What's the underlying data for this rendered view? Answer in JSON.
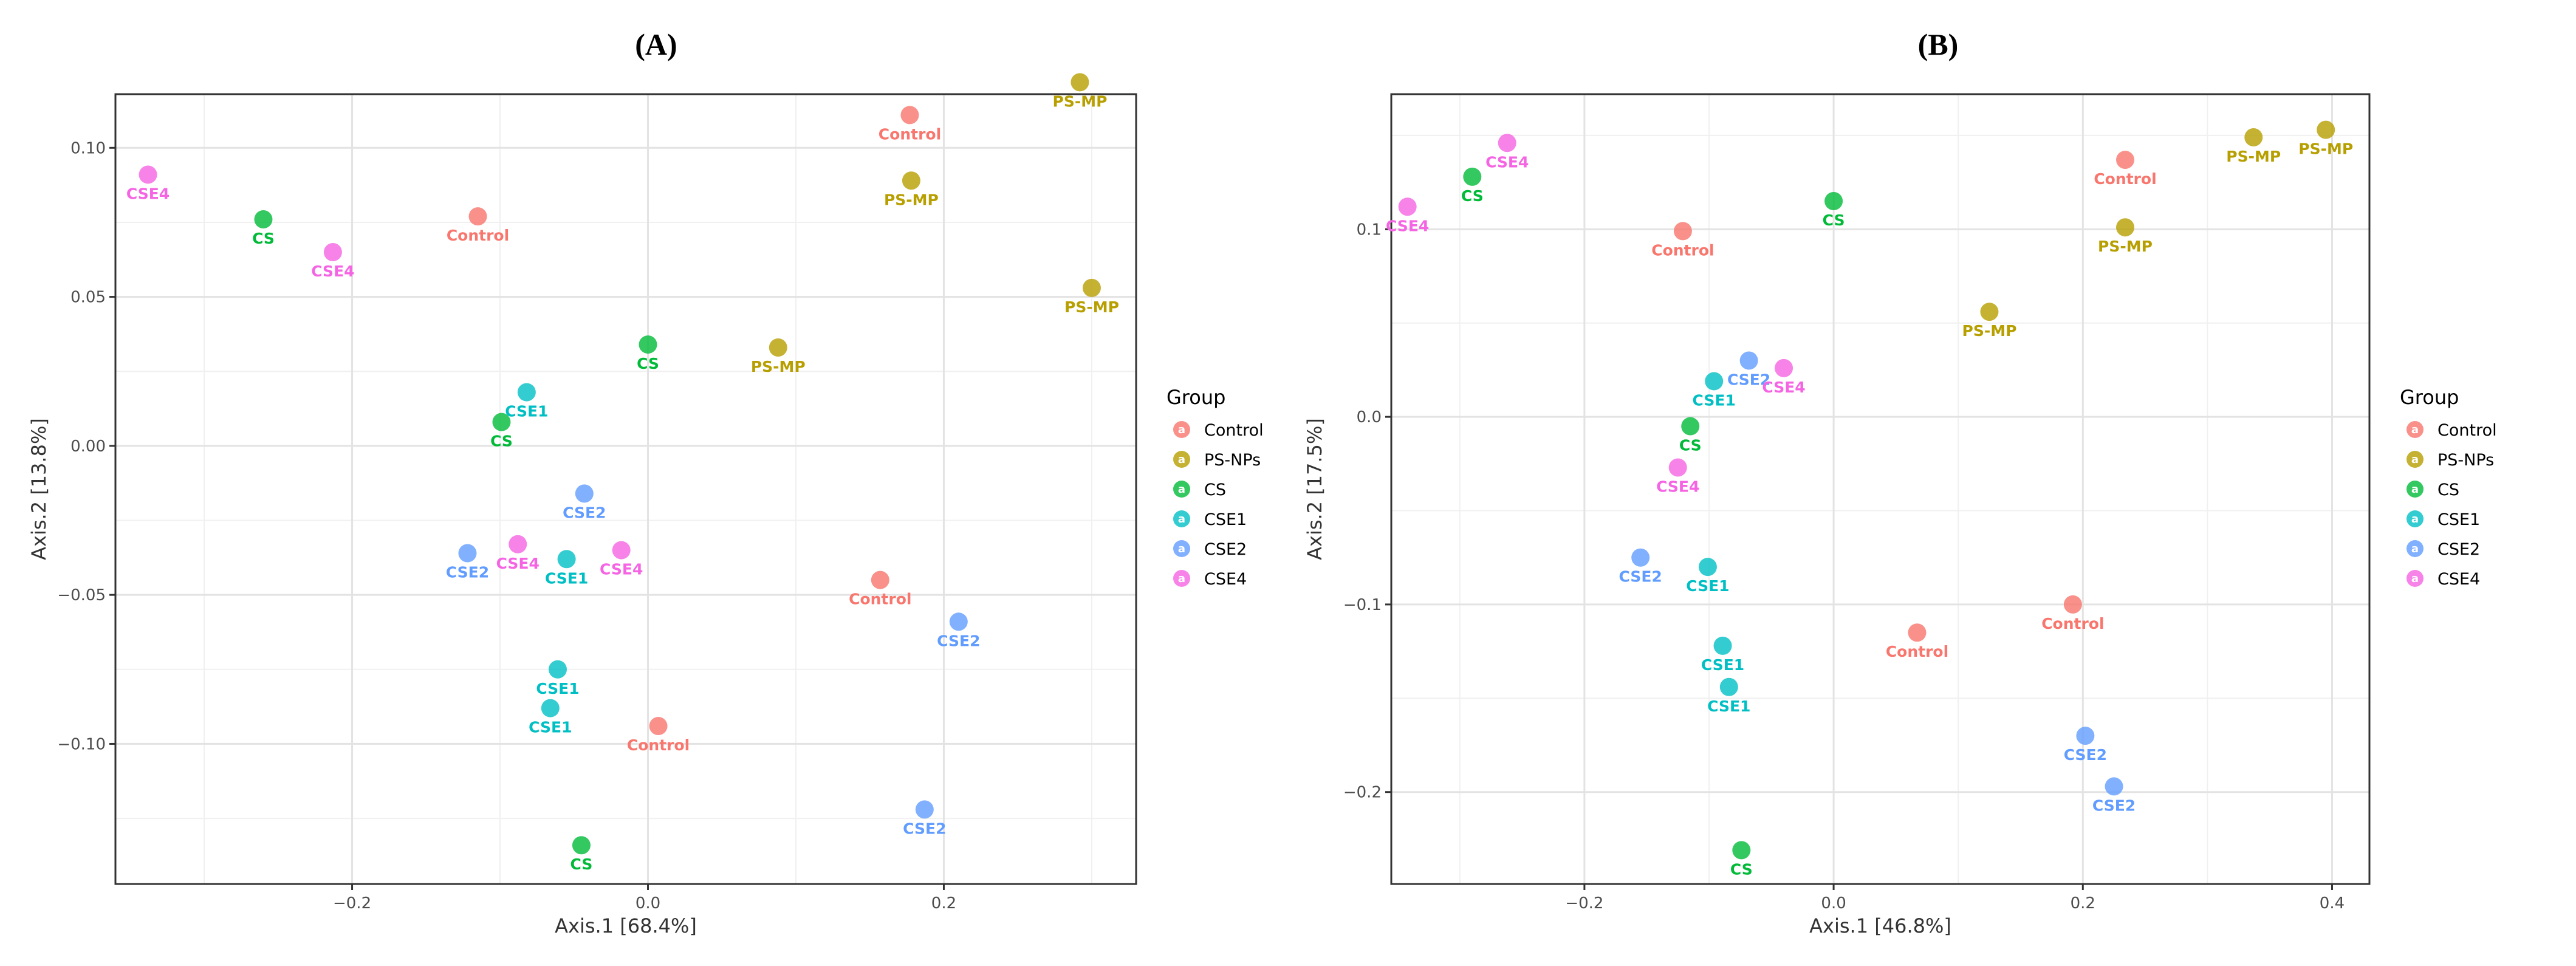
{
  "chart_data": [
    {
      "type": "scatter",
      "title": "(A)",
      "xlabel": "Axis.1   [68.4%]",
      "ylabel": "Axis.2   [13.8%]",
      "xlim": [
        -0.36,
        0.33
      ],
      "ylim": [
        -0.147,
        0.118
      ],
      "x_ticks": [
        -0.2,
        0.0,
        0.2
      ],
      "x_tick_labels": [
        "−0.2",
        "0.0",
        "0.2"
      ],
      "y_ticks": [
        -0.1,
        -0.05,
        0.0,
        0.05,
        0.1
      ],
      "y_tick_labels": [
        "−0.10",
        "−0.05",
        "0.00",
        "0.05",
        "0.10"
      ],
      "grid": true,
      "legend": {
        "title": "Group",
        "placement": "right",
        "entries": [
          {
            "label": "Control",
            "color": "#F8766D"
          },
          {
            "label": "PS-NPs",
            "color": "#B79F00"
          },
          {
            "label": "CS",
            "color": "#00BA38"
          },
          {
            "label": "CSE1",
            "color": "#00BFC4"
          },
          {
            "label": "CSE2",
            "color": "#619CFF"
          },
          {
            "label": "CSE4",
            "color": "#F564E3"
          }
        ]
      },
      "points": [
        {
          "label": "PS-MP",
          "group": "PS-NPs",
          "x": 0.292,
          "y": 0.122
        },
        {
          "label": "Control",
          "group": "Control",
          "x": 0.177,
          "y": 0.111
        },
        {
          "label": "CSE4",
          "group": "CSE4",
          "x": -0.338,
          "y": 0.091
        },
        {
          "label": "PS-MP",
          "group": "PS-NPs",
          "x": 0.178,
          "y": 0.089
        },
        {
          "label": "Control",
          "group": "Control",
          "x": -0.115,
          "y": 0.077
        },
        {
          "label": "CS",
          "group": "CS",
          "x": -0.26,
          "y": 0.076
        },
        {
          "label": "CSE4",
          "group": "CSE4",
          "x": -0.213,
          "y": 0.065
        },
        {
          "label": "PS-MP",
          "group": "PS-NPs",
          "x": 0.3,
          "y": 0.053
        },
        {
          "label": "CS",
          "group": "CS",
          "x": 0.0,
          "y": 0.034
        },
        {
          "label": "PS-MP",
          "group": "PS-NPs",
          "x": 0.088,
          "y": 0.033
        },
        {
          "label": "CSE1",
          "group": "CSE1",
          "x": -0.082,
          "y": 0.018
        },
        {
          "label": "CS",
          "group": "CS",
          "x": -0.099,
          "y": 0.008
        },
        {
          "label": "CSE2",
          "group": "CSE2",
          "x": -0.043,
          "y": -0.016
        },
        {
          "label": "CSE4",
          "group": "CSE4",
          "x": -0.088,
          "y": -0.033
        },
        {
          "label": "CSE2",
          "group": "CSE2",
          "x": -0.122,
          "y": -0.036
        },
        {
          "label": "CSE4",
          "group": "CSE4",
          "x": -0.018,
          "y": -0.035
        },
        {
          "label": "CSE1",
          "group": "CSE1",
          "x": -0.055,
          "y": -0.038
        },
        {
          "label": "Control",
          "group": "Control",
          "x": 0.157,
          "y": -0.045
        },
        {
          "label": "CSE2",
          "group": "CSE2",
          "x": 0.21,
          "y": -0.059
        },
        {
          "label": "CSE1",
          "group": "CSE1",
          "x": -0.061,
          "y": -0.075
        },
        {
          "label": "CSE1",
          "group": "CSE1",
          "x": -0.066,
          "y": -0.088
        },
        {
          "label": "Control",
          "group": "Control",
          "x": 0.007,
          "y": -0.094
        },
        {
          "label": "CSE2",
          "group": "CSE2",
          "x": 0.187,
          "y": -0.122
        },
        {
          "label": "CS",
          "group": "CS",
          "x": -0.045,
          "y": -0.134
        }
      ]
    },
    {
      "type": "scatter",
      "title": "(B)",
      "xlabel": "Axis.1   [46.8%]",
      "ylabel": "Axis.2   [17.5%]",
      "xlim": [
        -0.355,
        0.43
      ],
      "ylim": [
        -0.249,
        0.172
      ],
      "x_ticks": [
        -0.2,
        0.0,
        0.2,
        0.4
      ],
      "x_tick_labels": [
        "−0.2",
        "0.0",
        "0.2",
        "0.4"
      ],
      "y_ticks": [
        -0.2,
        -0.1,
        0.0,
        0.1
      ],
      "y_tick_labels": [
        "−0.2",
        "−0.1",
        "0.0",
        "0.1"
      ],
      "grid": true,
      "legend": {
        "title": "Group",
        "placement": "right",
        "entries": [
          {
            "label": "Control",
            "color": "#F8766D"
          },
          {
            "label": "PS-NPs",
            "color": "#B79F00"
          },
          {
            "label": "CS",
            "color": "#00BA38"
          },
          {
            "label": "CSE1",
            "color": "#00BFC4"
          },
          {
            "label": "CSE2",
            "color": "#619CFF"
          },
          {
            "label": "CSE4",
            "color": "#F564E3"
          }
        ]
      },
      "points": [
        {
          "label": "PS-MP",
          "group": "PS-NPs",
          "x": 0.395,
          "y": 0.153
        },
        {
          "label": "PS-MP",
          "group": "PS-NPs",
          "x": 0.337,
          "y": 0.149
        },
        {
          "label": "CSE4",
          "group": "CSE4",
          "x": -0.262,
          "y": 0.146
        },
        {
          "label": "Control",
          "group": "Control",
          "x": 0.234,
          "y": 0.137
        },
        {
          "label": "CS",
          "group": "CS",
          "x": -0.29,
          "y": 0.128
        },
        {
          "label": "CS",
          "group": "CS",
          "x": 0.0,
          "y": 0.115
        },
        {
          "label": "CSE4",
          "group": "CSE4",
          "x": -0.342,
          "y": 0.112
        },
        {
          "label": "PS-MP",
          "group": "PS-NPs",
          "x": 0.234,
          "y": 0.101
        },
        {
          "label": "Control",
          "group": "Control",
          "x": -0.121,
          "y": 0.099
        },
        {
          "label": "PS-MP",
          "group": "PS-NPs",
          "x": 0.125,
          "y": 0.056
        },
        {
          "label": "CSE2",
          "group": "CSE2",
          "x": -0.068,
          "y": 0.03
        },
        {
          "label": "CSE4",
          "group": "CSE4",
          "x": -0.04,
          "y": 0.026
        },
        {
          "label": "CSE1",
          "group": "CSE1",
          "x": -0.096,
          "y": 0.019
        },
        {
          "label": "CS",
          "group": "CS",
          "x": -0.115,
          "y": -0.005
        },
        {
          "label": "CSE4",
          "group": "CSE4",
          "x": -0.125,
          "y": -0.027
        },
        {
          "label": "CSE2",
          "group": "CSE2",
          "x": -0.155,
          "y": -0.075
        },
        {
          "label": "CSE1",
          "group": "CSE1",
          "x": -0.101,
          "y": -0.08
        },
        {
          "label": "Control",
          "group": "Control",
          "x": 0.192,
          "y": -0.1
        },
        {
          "label": "Control",
          "group": "Control",
          "x": 0.067,
          "y": -0.115
        },
        {
          "label": "CSE1",
          "group": "CSE1",
          "x": -0.089,
          "y": -0.122
        },
        {
          "label": "CSE1",
          "group": "CSE1",
          "x": -0.084,
          "y": -0.144
        },
        {
          "label": "CSE2",
          "group": "CSE2",
          "x": 0.202,
          "y": -0.17
        },
        {
          "label": "CSE2",
          "group": "CSE2",
          "x": 0.225,
          "y": -0.197
        },
        {
          "label": "CS",
          "group": "CS",
          "x": -0.074,
          "y": -0.231
        }
      ]
    }
  ]
}
